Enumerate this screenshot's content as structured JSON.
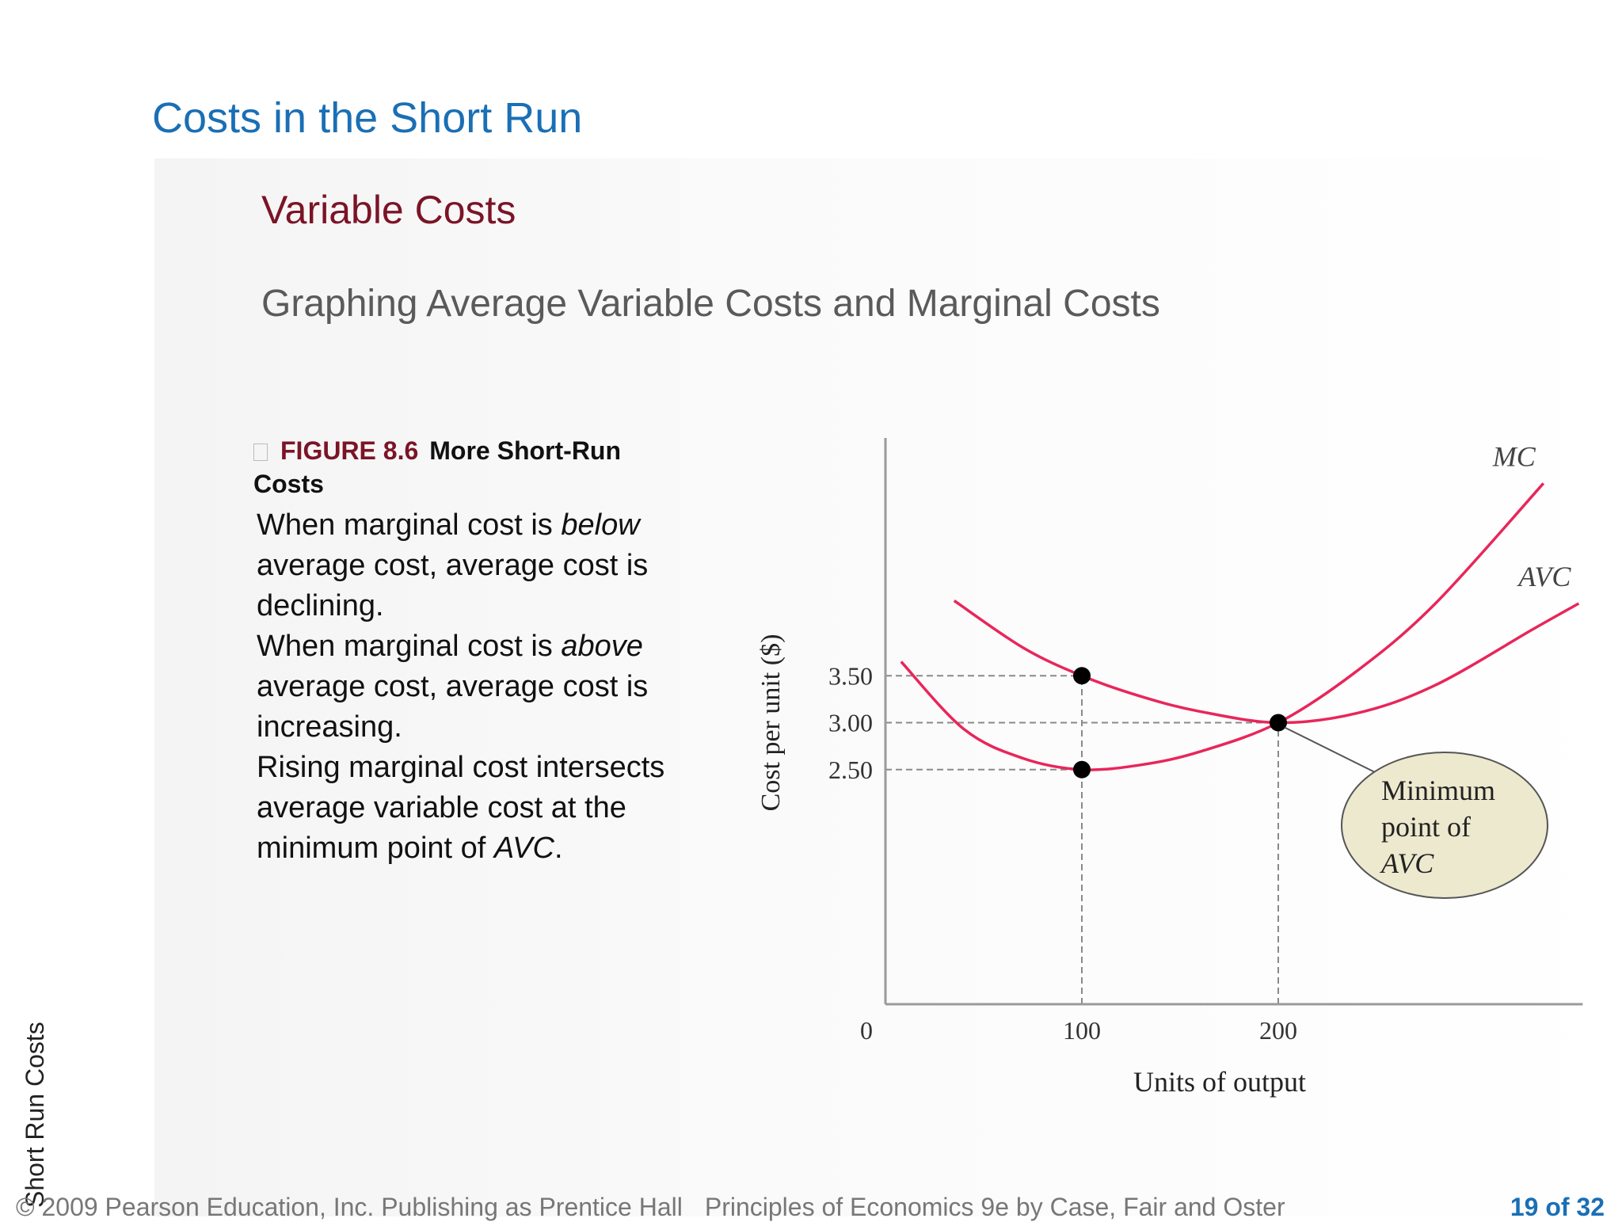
{
  "slide": {
    "title": "Costs in the Short Run",
    "subtitle": "Variable Costs",
    "subsubtitle": "Graphing Average Variable Costs and Marginal Costs"
  },
  "figure": {
    "number": "FIGURE 8.6",
    "caption": "More Short-Run Costs",
    "description": [
      {
        "before": "When marginal cost is ",
        "em": "below",
        "after": " average cost, average cost is declining."
      },
      {
        "before": "When marginal cost is ",
        "em": "above",
        "after": " average cost, average cost is increasing."
      },
      {
        "before": "Rising marginal cost intersects average variable cost at the minimum point of ",
        "em": "AVC",
        "after": "."
      }
    ]
  },
  "chart_data": {
    "type": "line",
    "xlabel": "Units of output",
    "ylabel": "Cost per unit ($)",
    "x_ticks": [
      "0",
      "100",
      "200"
    ],
    "y_ticks": [
      "2.50",
      "3.00",
      "3.50"
    ],
    "xlim": [
      0,
      355
    ],
    "ylim": [
      0,
      6
    ],
    "series": [
      {
        "name": "MC",
        "x": [
          8,
          40,
          70,
          100,
          130,
          160,
          200,
          240,
          280,
          335
        ],
        "y": [
          3.65,
          2.93,
          2.62,
          2.5,
          2.55,
          2.69,
          3.0,
          3.55,
          4.27,
          5.55
        ]
      },
      {
        "name": "AVC",
        "x": [
          35,
          70,
          100,
          130,
          160,
          200,
          240,
          280,
          330,
          353
        ],
        "y": [
          4.3,
          3.8,
          3.5,
          3.28,
          3.12,
          3.0,
          3.1,
          3.4,
          4.0,
          4.27
        ]
      }
    ],
    "points": [
      {
        "x": 100,
        "y": 3.5
      },
      {
        "x": 100,
        "y": 2.5
      },
      {
        "x": 200,
        "y": 3.0
      }
    ],
    "guides": [
      {
        "axis": "y",
        "value": 3.5,
        "to_x": 100
      },
      {
        "axis": "y",
        "value": 3.0,
        "to_x": 200
      },
      {
        "axis": "y",
        "value": 2.5,
        "to_x": 100
      },
      {
        "axis": "x",
        "value": 100,
        "to_y": 3.5
      },
      {
        "axis": "x",
        "value": 200,
        "to_y": 3.0
      }
    ],
    "callout": {
      "lines": [
        "Minimum",
        "point of",
        "AVC"
      ],
      "points_to": {
        "x": 200,
        "y": 3.0
      }
    },
    "curve_color": "#e8265a",
    "callout_fill": "#ede9cf",
    "grid": false
  },
  "footer": {
    "side_label": "Short Run Costs",
    "copyright": "© 2009 Pearson Education, Inc. Publishing as Prentice Hall",
    "book": "Principles of Economics 9e by Case, Fair and Oster",
    "page": "19 of 32"
  }
}
